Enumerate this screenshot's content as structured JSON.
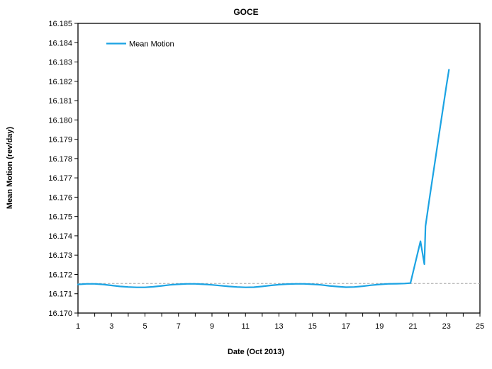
{
  "chart": {
    "title": "GOCE",
    "x_axis_title": "Date (Oct 2013)",
    "y_axis_title": "Mean Motion (rev/day)"
  },
  "legend": {
    "label": "Mean Motion"
  },
  "colors": {
    "series": "#1BA3E3",
    "reference_line": "#A6A6A6",
    "axis": "#000000",
    "text": "#000000",
    "background": "#FFFFFF"
  },
  "chart_data": {
    "type": "line",
    "title": "GOCE",
    "xlabel": "Date (Oct 2013)",
    "ylabel": "Mean Motion (rev/day)",
    "xlim": [
      1,
      25
    ],
    "ylim": [
      16.17,
      16.185
    ],
    "grid": false,
    "legend_position": "top-left-inside",
    "x_ticks": [
      1,
      2,
      3,
      4,
      5,
      6,
      7,
      8,
      9,
      10,
      11,
      12,
      13,
      14,
      15,
      16,
      17,
      18,
      19,
      20,
      21,
      22,
      23,
      24,
      25
    ],
    "x_labeled_ticks": [
      "1",
      "3",
      "5",
      "7",
      "9",
      "11",
      "13",
      "15",
      "17",
      "19",
      "21",
      "23",
      "25"
    ],
    "y_ticks": [
      {
        "value": 16.17,
        "label": "16.170"
      },
      {
        "value": 16.171,
        "label": "16.171"
      },
      {
        "value": 16.172,
        "label": "16.172"
      },
      {
        "value": 16.173,
        "label": "16.173"
      },
      {
        "value": 16.174,
        "label": "16.174"
      },
      {
        "value": 16.175,
        "label": "16.175"
      },
      {
        "value": 16.176,
        "label": "16.176"
      },
      {
        "value": 16.177,
        "label": "16.177"
      },
      {
        "value": 16.178,
        "label": "16.178"
      },
      {
        "value": 16.179,
        "label": "16.179"
      },
      {
        "value": 16.18,
        "label": "16.180"
      },
      {
        "value": 16.181,
        "label": "16.181"
      },
      {
        "value": 16.182,
        "label": "16.182"
      },
      {
        "value": 16.183,
        "label": "16.183"
      },
      {
        "value": 16.184,
        "label": "16.184"
      },
      {
        "value": 16.185,
        "label": "16.185"
      }
    ],
    "reference_line": {
      "y": 16.17153,
      "style": "dashed",
      "color": "#A6A6A6"
    },
    "series": [
      {
        "name": "Mean Motion",
        "color": "#1BA3E3",
        "points": [
          [
            1.0,
            16.17148
          ],
          [
            1.5,
            16.17151
          ],
          [
            2.0,
            16.17151
          ],
          [
            2.5,
            16.17148
          ],
          [
            3.0,
            16.17143
          ],
          [
            3.5,
            16.17138
          ],
          [
            4.0,
            16.17135
          ],
          [
            4.5,
            16.17133
          ],
          [
            5.0,
            16.17133
          ],
          [
            5.5,
            16.17136
          ],
          [
            6.0,
            16.17141
          ],
          [
            6.5,
            16.17146
          ],
          [
            7.0,
            16.17149
          ],
          [
            7.5,
            16.17151
          ],
          [
            8.0,
            16.17151
          ],
          [
            8.5,
            16.17149
          ],
          [
            9.0,
            16.17146
          ],
          [
            9.5,
            16.17142
          ],
          [
            10.0,
            16.17138
          ],
          [
            10.5,
            16.17135
          ],
          [
            11.0,
            16.17133
          ],
          [
            11.5,
            16.17134
          ],
          [
            12.0,
            16.17138
          ],
          [
            12.5,
            16.17143
          ],
          [
            13.0,
            16.17147
          ],
          [
            13.5,
            16.1715
          ],
          [
            14.0,
            16.17151
          ],
          [
            14.5,
            16.17151
          ],
          [
            15.0,
            16.17149
          ],
          [
            15.5,
            16.17146
          ],
          [
            16.0,
            16.17141
          ],
          [
            16.5,
            16.17137
          ],
          [
            17.0,
            16.17134
          ],
          [
            17.5,
            16.17135
          ],
          [
            18.0,
            16.17139
          ],
          [
            18.5,
            16.17144
          ],
          [
            19.0,
            16.17148
          ],
          [
            19.5,
            16.17151
          ],
          [
            20.0,
            16.17152
          ],
          [
            20.5,
            16.17153
          ],
          [
            20.85,
            16.17155
          ],
          [
            21.45,
            16.17372
          ],
          [
            21.68,
            16.17253
          ],
          [
            21.75,
            16.1745
          ],
          [
            22.0,
            16.176
          ],
          [
            22.5,
            16.1789
          ],
          [
            23.0,
            16.1818
          ],
          [
            23.15,
            16.1826
          ]
        ]
      }
    ]
  }
}
